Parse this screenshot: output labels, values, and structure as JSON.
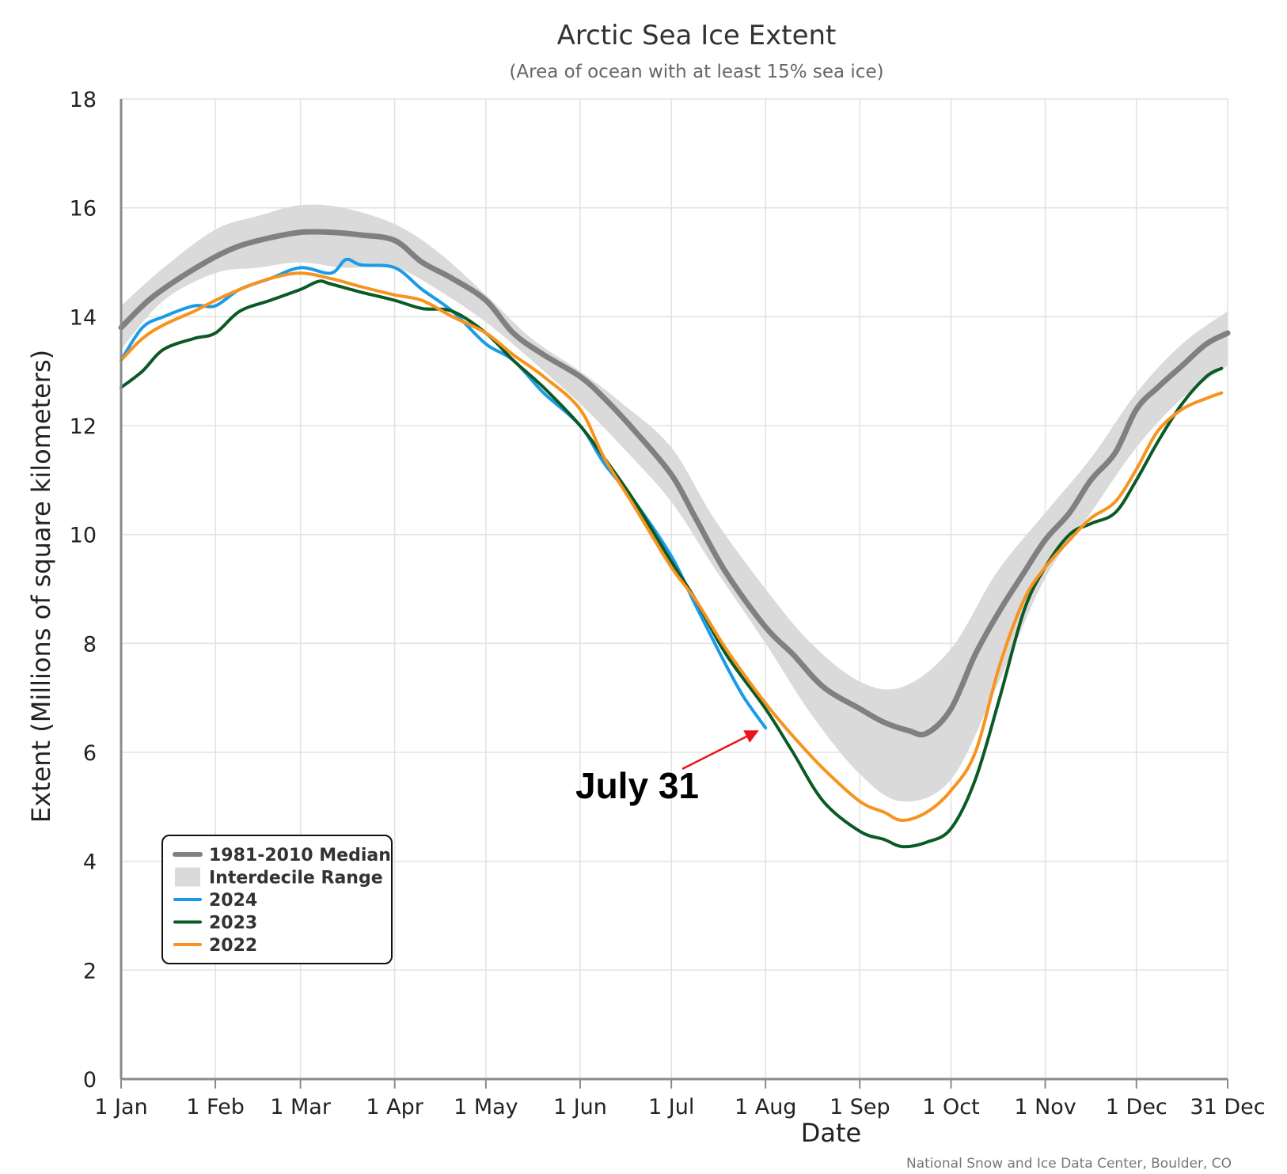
{
  "chart_data": {
    "type": "line",
    "title": "Arctic Sea Ice Extent",
    "subtitle": "(Area of ocean with at least 15% sea ice)",
    "xlabel": "Date",
    "ylabel": "Extent (Millions of square kilometers)",
    "ylim": [
      0,
      18
    ],
    "yticks": [
      "0",
      "2",
      "4",
      "6",
      "8",
      "10",
      "12",
      "14",
      "16",
      "18"
    ],
    "xlim": [
      1,
      365
    ],
    "xticks": [
      {
        "day": 1,
        "label": "1 Jan"
      },
      {
        "day": 32,
        "label": "1 Feb"
      },
      {
        "day": 60,
        "label": "1 Mar"
      },
      {
        "day": 91,
        "label": "1 Apr"
      },
      {
        "day": 121,
        "label": "1 May"
      },
      {
        "day": 152,
        "label": "1 Jun"
      },
      {
        "day": 182,
        "label": "1 Jul"
      },
      {
        "day": 213,
        "label": "1 Aug"
      },
      {
        "day": 244,
        "label": "1 Sep"
      },
      {
        "day": 274,
        "label": "1 Oct"
      },
      {
        "day": 305,
        "label": "1 Nov"
      },
      {
        "day": 335,
        "label": "1 Dec"
      },
      {
        "day": 365,
        "label": "31 Dec"
      }
    ],
    "grid": true,
    "legend_position": "bottom-left",
    "band": {
      "name": "Interdecile Range",
      "color": "#dadada",
      "x": [
        1,
        15,
        32,
        46,
        60,
        74,
        91,
        105,
        121,
        136,
        152,
        166,
        182,
        196,
        213,
        228,
        244,
        258,
        274,
        289,
        305,
        320,
        335,
        350,
        365
      ],
      "upper": [
        14.2,
        14.9,
        15.6,
        15.85,
        16.05,
        16.0,
        15.7,
        15.2,
        14.4,
        13.6,
        13.0,
        12.4,
        11.6,
        10.3,
        9.0,
        8.0,
        7.3,
        7.2,
        7.9,
        9.3,
        10.4,
        11.4,
        12.6,
        13.5,
        14.1
      ],
      "lower": [
        13.4,
        14.3,
        14.8,
        14.9,
        15.0,
        14.9,
        14.9,
        14.5,
        13.9,
        13.2,
        12.4,
        11.6,
        10.6,
        9.4,
        8.0,
        6.7,
        5.6,
        5.1,
        5.5,
        7.2,
        9.2,
        10.4,
        11.6,
        12.5,
        13.1
      ]
    },
    "series": [
      {
        "name": "1981-2010 Median",
        "color": "#808080",
        "width": 7,
        "x": [
          1,
          10,
          20,
          32,
          40,
          50,
          60,
          70,
          80,
          91,
          100,
          110,
          121,
          130,
          140,
          152,
          160,
          170,
          182,
          190,
          200,
          213,
          222,
          232,
          244,
          252,
          260,
          266,
          274,
          282,
          290,
          298,
          305,
          313,
          320,
          328,
          335,
          342,
          350,
          358,
          365
        ],
        "y": [
          13.8,
          14.3,
          14.7,
          15.1,
          15.3,
          15.45,
          15.55,
          15.55,
          15.5,
          15.4,
          15.0,
          14.7,
          14.3,
          13.7,
          13.3,
          12.9,
          12.5,
          11.9,
          11.1,
          10.3,
          9.3,
          8.3,
          7.8,
          7.2,
          6.8,
          6.55,
          6.4,
          6.35,
          6.8,
          7.8,
          8.6,
          9.3,
          9.9,
          10.4,
          11.0,
          11.5,
          12.3,
          12.7,
          13.1,
          13.5,
          13.7
        ]
      },
      {
        "name": "2024",
        "color": "#1a9bea",
        "width": 4,
        "x": [
          1,
          8,
          15,
          25,
          32,
          40,
          50,
          60,
          70,
          75,
          80,
          91,
          100,
          110,
          121,
          130,
          140,
          152,
          160,
          170,
          182,
          190,
          200,
          206,
          213
        ],
        "y": [
          13.2,
          13.8,
          14.0,
          14.2,
          14.2,
          14.5,
          14.7,
          14.9,
          14.8,
          15.05,
          14.95,
          14.9,
          14.5,
          14.1,
          13.5,
          13.2,
          12.6,
          12.0,
          11.3,
          10.6,
          9.6,
          8.7,
          7.6,
          7.0,
          6.45
        ]
      },
      {
        "name": "2023",
        "color": "#0b5a26",
        "width": 4,
        "x": [
          1,
          8,
          15,
          25,
          32,
          40,
          50,
          60,
          66,
          70,
          80,
          91,
          100,
          110,
          121,
          130,
          140,
          152,
          160,
          170,
          182,
          190,
          200,
          213,
          222,
          232,
          244,
          252,
          258,
          266,
          274,
          282,
          290,
          298,
          305,
          313,
          320,
          328,
          335,
          342,
          350,
          358,
          363
        ],
        "y": [
          12.7,
          13.0,
          13.4,
          13.6,
          13.7,
          14.1,
          14.3,
          14.5,
          14.65,
          14.6,
          14.45,
          14.3,
          14.15,
          14.1,
          13.7,
          13.2,
          12.7,
          12.0,
          11.4,
          10.6,
          9.5,
          8.8,
          7.8,
          6.8,
          6.0,
          5.1,
          4.55,
          4.4,
          4.27,
          4.35,
          4.6,
          5.5,
          7.0,
          8.6,
          9.4,
          10.0,
          10.2,
          10.4,
          11.0,
          11.7,
          12.4,
          12.9,
          13.05
        ]
      },
      {
        "name": "2022",
        "color": "#f7931e",
        "width": 4,
        "x": [
          1,
          8,
          15,
          25,
          32,
          40,
          50,
          60,
          70,
          80,
          91,
          100,
          110,
          121,
          130,
          140,
          152,
          160,
          170,
          182,
          190,
          200,
          213,
          222,
          232,
          244,
          252,
          258,
          266,
          274,
          282,
          290,
          298,
          305,
          313,
          320,
          328,
          335,
          342,
          350,
          358,
          363
        ],
        "y": [
          13.2,
          13.6,
          13.85,
          14.1,
          14.3,
          14.5,
          14.7,
          14.8,
          14.7,
          14.55,
          14.4,
          14.3,
          14.0,
          13.7,
          13.3,
          12.9,
          12.3,
          11.4,
          10.5,
          9.4,
          8.8,
          7.9,
          6.9,
          6.3,
          5.7,
          5.1,
          4.9,
          4.75,
          4.9,
          5.3,
          6.0,
          7.6,
          8.8,
          9.4,
          9.9,
          10.3,
          10.6,
          11.2,
          11.9,
          12.3,
          12.5,
          12.6
        ]
      }
    ],
    "annotation": {
      "text": "July 31",
      "target_day": 213,
      "target_value": 6.45
    },
    "credit": "National Snow and Ice Data Center, Boulder, CO"
  }
}
